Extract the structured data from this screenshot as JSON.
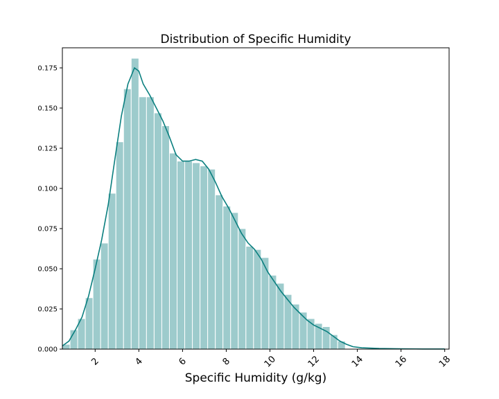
{
  "chart_data": {
    "type": "histogram",
    "title": "Distribution of Specific Humidity",
    "xlabel": "Specific Humidity (g/kg)",
    "ylabel": "",
    "xlim": [
      0.5,
      18.2
    ],
    "ylim": [
      0,
      0.1875
    ],
    "xticks": [
      2,
      4,
      6,
      8,
      10,
      12,
      14,
      16,
      18
    ],
    "yticks": [
      0.0,
      0.025,
      0.05,
      0.075,
      0.1,
      0.125,
      0.15,
      0.175
    ],
    "bin_width": 0.35,
    "bins": [
      {
        "x0": 0.5,
        "h": 0.003
      },
      {
        "x0": 0.85,
        "h": 0.012
      },
      {
        "x0": 1.2,
        "h": 0.019
      },
      {
        "x0": 1.55,
        "h": 0.032
      },
      {
        "x0": 1.9,
        "h": 0.056
      },
      {
        "x0": 2.25,
        "h": 0.066
      },
      {
        "x0": 2.6,
        "h": 0.097
      },
      {
        "x0": 2.95,
        "h": 0.129
      },
      {
        "x0": 3.3,
        "h": 0.162
      },
      {
        "x0": 3.65,
        "h": 0.181
      },
      {
        "x0": 4.0,
        "h": 0.157
      },
      {
        "x0": 4.35,
        "h": 0.157
      },
      {
        "x0": 4.7,
        "h": 0.147
      },
      {
        "x0": 5.05,
        "h": 0.139
      },
      {
        "x0": 5.4,
        "h": 0.122
      },
      {
        "x0": 5.75,
        "h": 0.117
      },
      {
        "x0": 6.1,
        "h": 0.117
      },
      {
        "x0": 6.45,
        "h": 0.116
      },
      {
        "x0": 6.8,
        "h": 0.114
      },
      {
        "x0": 7.15,
        "h": 0.112
      },
      {
        "x0": 7.5,
        "h": 0.096
      },
      {
        "x0": 7.85,
        "h": 0.089
      },
      {
        "x0": 8.2,
        "h": 0.085
      },
      {
        "x0": 8.55,
        "h": 0.075
      },
      {
        "x0": 8.9,
        "h": 0.064
      },
      {
        "x0": 9.25,
        "h": 0.062
      },
      {
        "x0": 9.6,
        "h": 0.057
      },
      {
        "x0": 9.95,
        "h": 0.046
      },
      {
        "x0": 10.3,
        "h": 0.041
      },
      {
        "x0": 10.65,
        "h": 0.034
      },
      {
        "x0": 11.0,
        "h": 0.028
      },
      {
        "x0": 11.35,
        "h": 0.023
      },
      {
        "x0": 11.7,
        "h": 0.019
      },
      {
        "x0": 12.05,
        "h": 0.016
      },
      {
        "x0": 12.4,
        "h": 0.014
      },
      {
        "x0": 12.75,
        "h": 0.009
      },
      {
        "x0": 13.1,
        "h": 0.005
      }
    ],
    "kde": [
      [
        0.5,
        0.002
      ],
      [
        0.8,
        0.005
      ],
      [
        1.1,
        0.012
      ],
      [
        1.4,
        0.02
      ],
      [
        1.7,
        0.033
      ],
      [
        2.0,
        0.05
      ],
      [
        2.3,
        0.068
      ],
      [
        2.6,
        0.09
      ],
      [
        2.9,
        0.118
      ],
      [
        3.2,
        0.145
      ],
      [
        3.5,
        0.165
      ],
      [
        3.8,
        0.175
      ],
      [
        4.0,
        0.173
      ],
      [
        4.2,
        0.165
      ],
      [
        4.5,
        0.158
      ],
      [
        4.8,
        0.15
      ],
      [
        5.1,
        0.142
      ],
      [
        5.4,
        0.132
      ],
      [
        5.7,
        0.121
      ],
      [
        6.0,
        0.117
      ],
      [
        6.3,
        0.117
      ],
      [
        6.6,
        0.118
      ],
      [
        6.9,
        0.117
      ],
      [
        7.2,
        0.112
      ],
      [
        7.5,
        0.104
      ],
      [
        7.8,
        0.095
      ],
      [
        8.1,
        0.088
      ],
      [
        8.4,
        0.08
      ],
      [
        8.7,
        0.072
      ],
      [
        9.0,
        0.066
      ],
      [
        9.3,
        0.062
      ],
      [
        9.6,
        0.056
      ],
      [
        9.9,
        0.048
      ],
      [
        10.2,
        0.042
      ],
      [
        10.5,
        0.036
      ],
      [
        10.8,
        0.031
      ],
      [
        11.1,
        0.026
      ],
      [
        11.4,
        0.022
      ],
      [
        11.7,
        0.018
      ],
      [
        12.0,
        0.015
      ],
      [
        12.3,
        0.013
      ],
      [
        12.6,
        0.011
      ],
      [
        12.9,
        0.008
      ],
      [
        13.2,
        0.005
      ],
      [
        13.5,
        0.003
      ],
      [
        13.8,
        0.0015
      ],
      [
        14.2,
        0.0008
      ],
      [
        15.0,
        0.0004
      ],
      [
        16.0,
        0.0002
      ],
      [
        17.0,
        0.0001
      ],
      [
        18.0,
        0.0001
      ]
    ],
    "colors": {
      "bar": "#9dcbcc",
      "line": "#0a7f7f"
    },
    "grid": false,
    "legend": "none"
  }
}
